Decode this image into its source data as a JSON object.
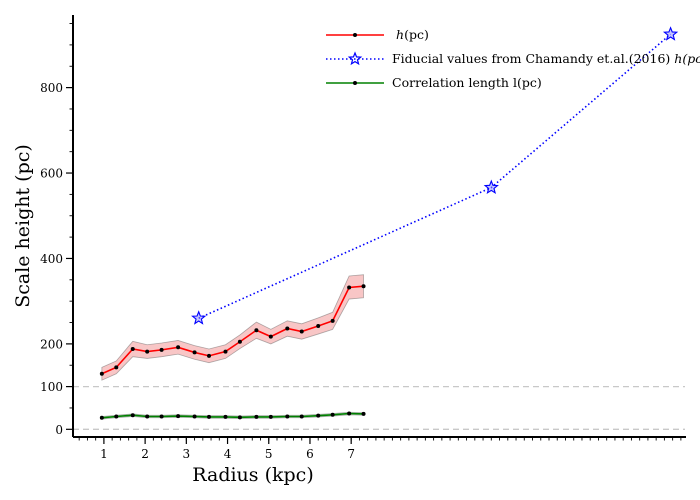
{
  "chart_data": {
    "type": "line",
    "xlabel": "Radius (kpc)",
    "ylabel": "Scale height (pc)",
    "xlim": [
      0.25,
      15.1
    ],
    "ylim": [
      -18,
      970
    ],
    "x_ticks": [
      1,
      2,
      3,
      4,
      5,
      6,
      7
    ],
    "y_ticks": [
      0,
      100,
      200,
      400,
      600,
      800
    ],
    "reference_lines": [
      0,
      100
    ],
    "legend_position": "top-center",
    "series": [
      {
        "name": "h(pc)",
        "name_italic": "h",
        "name_rest": "(pc)",
        "color": "#ff0000",
        "band_color": "#f08080",
        "line_style": "solid",
        "marker": "dot",
        "x": [
          0.95,
          1.3,
          1.7,
          2.05,
          2.4,
          2.8,
          3.2,
          3.55,
          3.95,
          4.3,
          4.7,
          5.05,
          5.45,
          5.8,
          6.2,
          6.55,
          6.95,
          7.3
        ],
        "y": [
          130,
          145,
          188,
          182,
          186,
          192,
          180,
          172,
          182,
          205,
          232,
          217,
          236,
          229,
          242,
          254,
          332,
          335
        ],
        "band_lower": [
          115,
          130,
          170,
          166,
          170,
          176,
          164,
          156,
          166,
          189,
          213,
          200,
          218,
          211,
          223,
          234,
          305,
          308
        ],
        "band_upper": [
          145,
          160,
          206,
          198,
          202,
          208,
          196,
          188,
          198,
          221,
          251,
          234,
          254,
          247,
          261,
          274,
          359,
          362
        ]
      },
      {
        "name": "Fiducial values from Chamandy et.al.(2016) h(pc)",
        "name_prefix": "Fiducial values from Chamandy et.al.(2016) ",
        "name_italic": "h(pc)",
        "color": "#0000ff",
        "line_style": "dotted",
        "marker": "star",
        "x": [
          3.3,
          10.4,
          14.75
        ],
        "y": [
          260,
          566,
          925
        ]
      },
      {
        "name": "Correlation length l(pc)",
        "color": "#008000",
        "band_color": "#7fbf7f",
        "line_style": "solid",
        "marker": "dot",
        "x": [
          0.95,
          1.3,
          1.7,
          2.05,
          2.4,
          2.8,
          3.2,
          3.55,
          3.95,
          4.3,
          4.7,
          5.05,
          5.45,
          5.8,
          6.2,
          6.55,
          6.95,
          7.3
        ],
        "y": [
          27,
          30,
          33,
          30,
          30,
          31,
          30,
          29,
          29,
          28,
          29,
          29,
          30,
          30,
          32,
          34,
          37,
          36
        ],
        "band_lower": [
          24,
          27,
          30,
          27,
          27,
          28,
          27,
          26,
          26,
          25,
          26,
          26,
          27,
          27,
          29,
          31,
          34,
          33
        ],
        "band_upper": [
          30,
          33,
          36,
          33,
          33,
          34,
          33,
          32,
          32,
          31,
          32,
          32,
          33,
          33,
          35,
          37,
          40,
          39
        ]
      }
    ]
  }
}
